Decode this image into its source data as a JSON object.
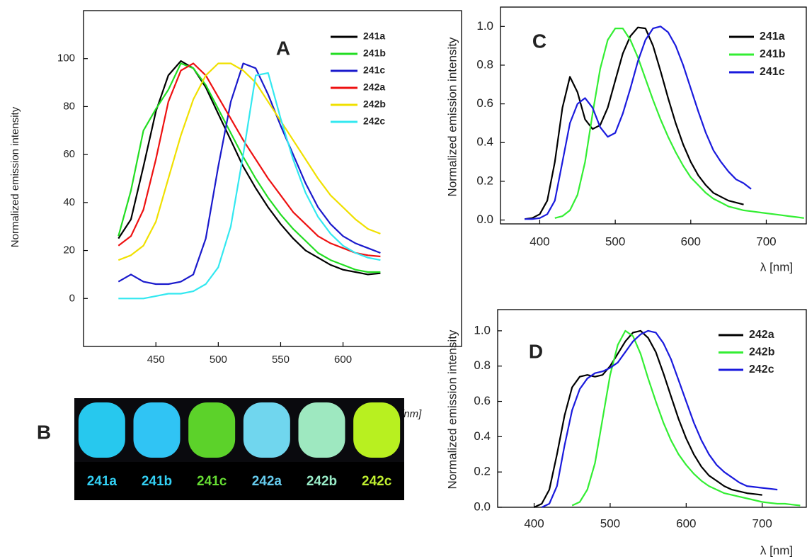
{
  "chart_data": [
    {
      "type": "line",
      "panel_label": "A",
      "y_label": "Normalized emission intensity",
      "x_label": "λ [nm]",
      "xlim": [
        392,
        695
      ],
      "ylim": [
        -20,
        120
      ],
      "xticks": [
        450,
        500,
        550,
        600
      ],
      "yticks": [
        0,
        20,
        40,
        60,
        80,
        100
      ],
      "x": [
        420,
        430,
        440,
        450,
        460,
        470,
        480,
        490,
        500,
        510,
        520,
        530,
        540,
        550,
        560,
        570,
        580,
        590,
        600,
        610,
        620,
        630
      ],
      "series": [
        {
          "name": "241a",
          "color": "#000000",
          "values": [
            25,
            33,
            55,
            78,
            93,
            99,
            96,
            88,
            77,
            66,
            55,
            46,
            38,
            31,
            25,
            20,
            17,
            14,
            12,
            11,
            10,
            10.5
          ]
        },
        {
          "name": "241b",
          "color": "#22dd22",
          "values": [
            26,
            45,
            70,
            79,
            87,
            98,
            96,
            89,
            79,
            69,
            59,
            50,
            42,
            35,
            29,
            24,
            19,
            16,
            14,
            12,
            11,
            11
          ]
        },
        {
          "name": "241c",
          "color": "#1a1acc",
          "values": [
            7,
            10,
            7,
            6,
            6,
            7,
            10,
            25,
            55,
            82,
            98,
            96,
            85,
            72,
            60,
            48,
            38,
            31,
            26,
            23,
            21,
            19
          ]
        },
        {
          "name": "242a",
          "color": "#ee1111",
          "values": [
            22,
            26,
            37,
            58,
            82,
            95,
            98,
            93,
            84,
            75,
            66,
            58,
            50,
            43,
            36,
            31,
            26,
            23,
            21,
            19,
            18,
            17.5
          ]
        },
        {
          "name": "242b",
          "color": "#f0e000",
          "values": [
            16,
            18,
            22,
            32,
            50,
            68,
            83,
            93,
            98,
            98,
            95,
            90,
            82,
            74,
            66,
            58,
            50,
            43,
            38,
            33,
            29,
            27
          ]
        },
        {
          "name": "242c",
          "color": "#33e8f0",
          "values": [
            0,
            0,
            0,
            1,
            2,
            2,
            3,
            6,
            13,
            30,
            60,
            93,
            94,
            75,
            58,
            44,
            34,
            27,
            22,
            19,
            17,
            16
          ]
        }
      ]
    },
    {
      "type": "line",
      "panel_label": "C",
      "y_label": "Normalized emission intensity",
      "x_label": "λ [nm]",
      "xlim": [
        348,
        753
      ],
      "ylim": [
        -0.02,
        1.1
      ],
      "xticks": [
        400,
        500,
        600,
        700
      ],
      "yticks": [
        {
          "value": 0,
          "label": "0.0"
        },
        0.2,
        0.4,
        0.6,
        0.8,
        {
          "value": 1,
          "label": "1.0"
        }
      ],
      "x": [
        370,
        380,
        390,
        400,
        410,
        420,
        430,
        440,
        450,
        460,
        470,
        480,
        490,
        500,
        510,
        520,
        530,
        540,
        550,
        560,
        570,
        580,
        590,
        600,
        610,
        620,
        630,
        640,
        650,
        660,
        670,
        680,
        690,
        700,
        710,
        720,
        730,
        740,
        750
      ],
      "series": [
        {
          "name": "241a",
          "color": "#000000",
          "values": [
            null,
            0.005,
            0.01,
            0.03,
            0.1,
            0.3,
            0.58,
            0.74,
            0.66,
            0.52,
            0.47,
            0.49,
            0.58,
            0.72,
            0.86,
            0.95,
            0.995,
            0.99,
            0.9,
            0.77,
            0.63,
            0.5,
            0.39,
            0.3,
            0.23,
            0.18,
            0.14,
            0.12,
            0.1,
            0.09,
            0.08,
            null,
            null,
            null,
            null,
            null,
            null,
            null,
            null
          ]
        },
        {
          "name": "241b",
          "color": "#33ee33",
          "values": [
            null,
            null,
            null,
            null,
            null,
            0.01,
            0.02,
            0.05,
            0.13,
            0.3,
            0.55,
            0.78,
            0.93,
            0.99,
            0.99,
            0.93,
            0.84,
            0.73,
            0.62,
            0.52,
            0.43,
            0.35,
            0.28,
            0.22,
            0.18,
            0.14,
            0.11,
            0.09,
            0.07,
            0.06,
            0.05,
            0.045,
            0.04,
            0.035,
            0.03,
            0.025,
            0.02,
            0.015,
            0.01
          ]
        },
        {
          "name": "241c",
          "color": "#1a1add",
          "values": [
            null,
            0.005,
            0.005,
            0.01,
            0.03,
            0.1,
            0.3,
            0.5,
            0.6,
            0.63,
            0.58,
            0.48,
            0.43,
            0.45,
            0.55,
            0.68,
            0.82,
            0.93,
            0.99,
            1.0,
            0.97,
            0.9,
            0.8,
            0.68,
            0.56,
            0.45,
            0.36,
            0.3,
            0.25,
            0.21,
            0.19,
            0.16,
            null,
            null,
            null,
            null,
            null,
            null,
            null
          ]
        }
      ]
    },
    {
      "type": "line",
      "panel_label": "D",
      "y_label": "Normalized emission intensity",
      "x_label": "λ [nm]",
      "xlim": [
        352,
        758
      ],
      "ylim": [
        0,
        1.12
      ],
      "xticks": [
        400,
        500,
        600,
        700
      ],
      "yticks": [
        {
          "value": 0,
          "label": "0.0"
        },
        0.2,
        0.4,
        0.6,
        0.8,
        {
          "value": 1,
          "label": "1.0"
        }
      ],
      "x": [
        370,
        380,
        390,
        400,
        410,
        420,
        430,
        440,
        450,
        460,
        470,
        480,
        490,
        500,
        510,
        520,
        530,
        540,
        550,
        560,
        570,
        580,
        590,
        600,
        610,
        620,
        630,
        640,
        650,
        660,
        670,
        680,
        690,
        700,
        710,
        720,
        730,
        740,
        750
      ],
      "series": [
        {
          "name": "242a",
          "color": "#000000",
          "values": [
            null,
            null,
            null,
            0,
            0.02,
            0.1,
            0.3,
            0.52,
            0.68,
            0.74,
            0.75,
            0.74,
            0.75,
            0.8,
            0.87,
            0.94,
            0.99,
            1.0,
            0.96,
            0.88,
            0.76,
            0.63,
            0.5,
            0.39,
            0.3,
            0.23,
            0.18,
            0.15,
            0.12,
            0.1,
            0.09,
            0.08,
            0.075,
            0.07,
            null,
            null,
            null,
            null,
            null
          ]
        },
        {
          "name": "242b",
          "color": "#33ee33",
          "values": [
            null,
            null,
            null,
            null,
            null,
            null,
            null,
            null,
            0.01,
            0.03,
            0.1,
            0.25,
            0.5,
            0.75,
            0.92,
            1.0,
            0.97,
            0.87,
            0.73,
            0.6,
            0.48,
            0.38,
            0.3,
            0.24,
            0.19,
            0.15,
            0.12,
            0.1,
            0.08,
            0.07,
            0.06,
            0.05,
            0.04,
            0.03,
            0.025,
            0.02,
            0.02,
            0.015,
            0.01
          ]
        },
        {
          "name": "242c",
          "color": "#1a1add",
          "values": [
            null,
            null,
            null,
            null,
            0,
            0.02,
            0.12,
            0.35,
            0.55,
            0.67,
            0.73,
            0.76,
            0.77,
            0.79,
            0.82,
            0.88,
            0.94,
            0.98,
            1.0,
            0.99,
            0.93,
            0.84,
            0.72,
            0.6,
            0.48,
            0.38,
            0.3,
            0.24,
            0.2,
            0.17,
            0.14,
            0.12,
            0.115,
            0.11,
            0.105,
            0.1,
            null,
            null,
            null
          ]
        }
      ]
    }
  ],
  "photo": {
    "label": "B",
    "samples": [
      {
        "label": "241a",
        "color": "#27c8ee",
        "text_color": "#33d0f4"
      },
      {
        "label": "241b",
        "color": "#30c4f4",
        "text_color": "#33d0f4"
      },
      {
        "label": "241c",
        "color": "#5cd22a",
        "text_color": "#66dd33"
      },
      {
        "label": "242a",
        "color": "#70d6ee",
        "text_color": "#66ccee"
      },
      {
        "label": "242b",
        "color": "#9ee8c0",
        "text_color": "#99ecc8"
      },
      {
        "label": "242c",
        "color": "#b8f020",
        "text_color": "#c0f030"
      }
    ]
  }
}
